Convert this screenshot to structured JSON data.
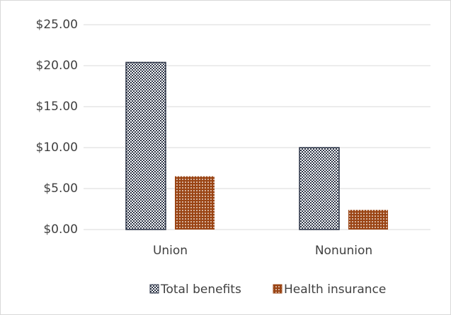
{
  "chart_data": {
    "type": "bar",
    "categories": [
      "Union",
      "Nonunion"
    ],
    "series": [
      {
        "name": "Total benefits",
        "color": "#2e3648",
        "values": [
          20.4,
          10.0
        ]
      },
      {
        "name": "Health insurance",
        "color": "#9a4414",
        "values": [
          6.5,
          2.4
        ]
      }
    ],
    "ylim": [
      0,
      25
    ],
    "yticks": [
      {
        "value": 0,
        "label": "$0.00"
      },
      {
        "value": 5,
        "label": "$5.00"
      },
      {
        "value": 10,
        "label": "$10.00"
      },
      {
        "value": 15,
        "label": "$15.00"
      },
      {
        "value": 20,
        "label": "$20.00"
      },
      {
        "value": 25,
        "label": "$25.00"
      }
    ],
    "grid": true,
    "legend": "bottom"
  }
}
